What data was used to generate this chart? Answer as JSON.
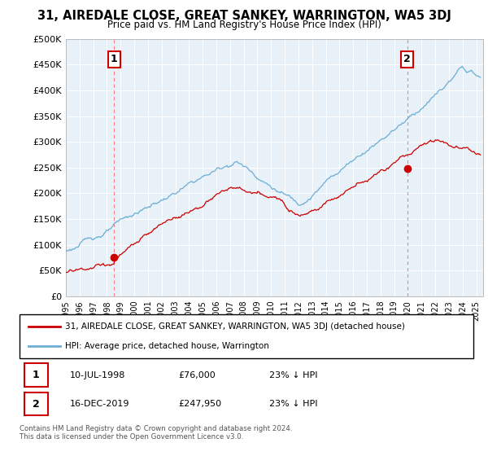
{
  "title": "31, AIREDALE CLOSE, GREAT SANKEY, WARRINGTON, WA5 3DJ",
  "subtitle": "Price paid vs. HM Land Registry's House Price Index (HPI)",
  "ylabel_ticks": [
    "£0",
    "£50K",
    "£100K",
    "£150K",
    "£200K",
    "£250K",
    "£300K",
    "£350K",
    "£400K",
    "£450K",
    "£500K"
  ],
  "ytick_values": [
    0,
    50000,
    100000,
    150000,
    200000,
    250000,
    300000,
    350000,
    400000,
    450000,
    500000
  ],
  "ylim": [
    0,
    500000
  ],
  "sale1": {
    "date_num": 1998.53,
    "price": 76000,
    "label": "1"
  },
  "sale2": {
    "date_num": 2019.96,
    "price": 247950,
    "label": "2"
  },
  "legend_line1": "31, AIREDALE CLOSE, GREAT SANKEY, WARRINGTON, WA5 3DJ (detached house)",
  "legend_line2": "HPI: Average price, detached house, Warrington",
  "table_row1": [
    "1",
    "10-JUL-1998",
    "£76,000",
    "23% ↓ HPI"
  ],
  "table_row2": [
    "2",
    "16-DEC-2019",
    "£247,950",
    "23% ↓ HPI"
  ],
  "footnote": "Contains HM Land Registry data © Crown copyright and database right 2024.\nThis data is licensed under the Open Government Licence v3.0.",
  "hpi_color": "#6baed6",
  "price_color": "#cc0000",
  "sale_marker_color": "#cc0000",
  "bg_color": "#ffffff",
  "plot_bg_color": "#e8f0f8",
  "grid_color": "#ffffff",
  "xmin": 1995.0,
  "xmax": 2025.5,
  "xticks": [
    1995,
    1996,
    1997,
    1998,
    1999,
    2000,
    2001,
    2002,
    2003,
    2004,
    2005,
    2006,
    2007,
    2008,
    2009,
    2010,
    2011,
    2012,
    2013,
    2014,
    2015,
    2016,
    2017,
    2018,
    2019,
    2020,
    2021,
    2022,
    2023,
    2024,
    2025
  ]
}
